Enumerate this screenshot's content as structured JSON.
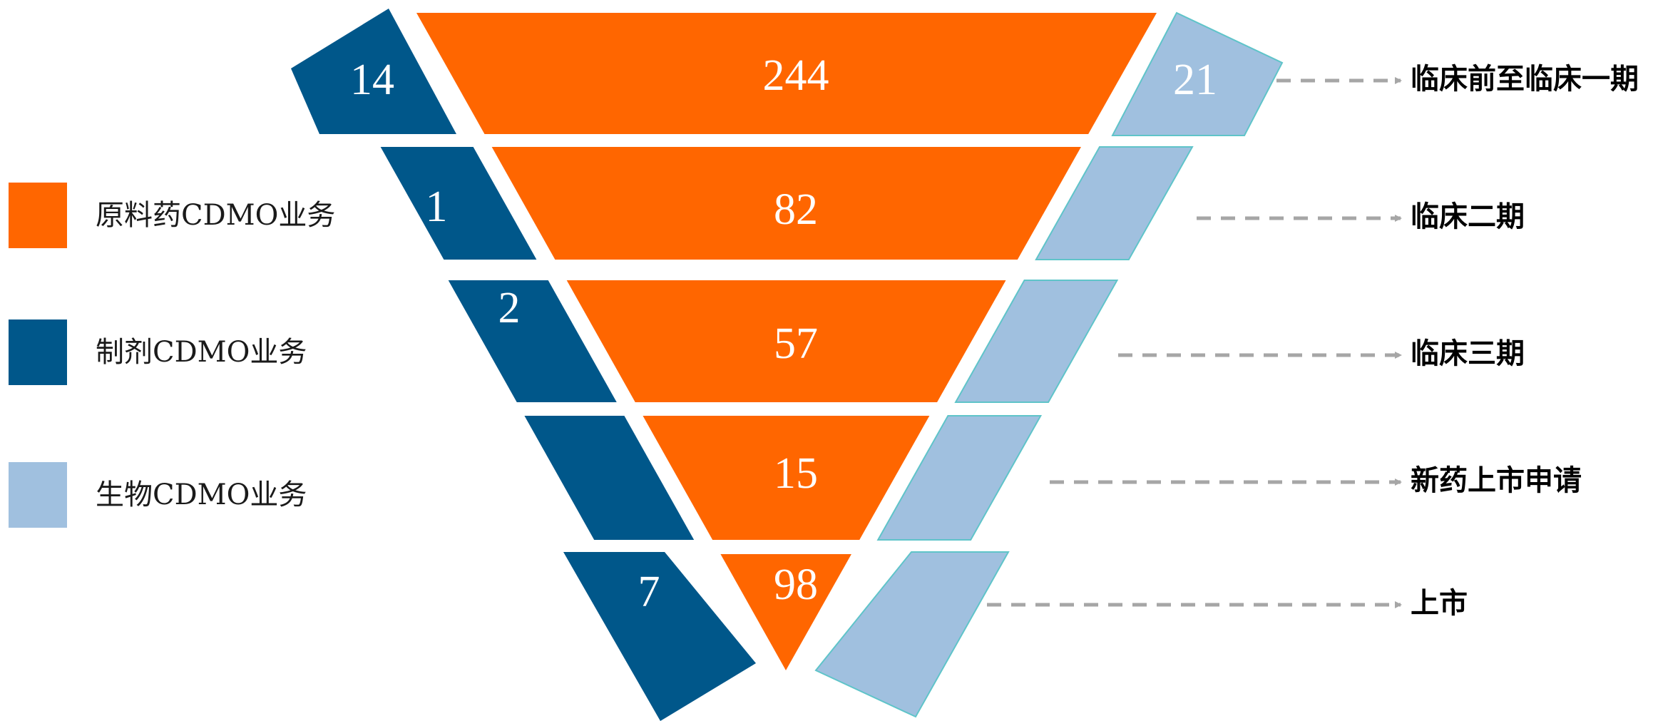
{
  "chart_data": {
    "type": "funnel",
    "stages": [
      "临床前至临床一期",
      "临床二期",
      "临床三期",
      "新药上市申请",
      "上市"
    ],
    "series": [
      {
        "name": "原料药CDMO业务",
        "color": "#FF6600",
        "values": [
          244,
          82,
          57,
          15,
          98
        ]
      },
      {
        "name": "制剂CDMO业务",
        "color": "#00578A",
        "values": [
          14,
          1,
          2,
          null,
          7
        ]
      },
      {
        "name": "生物CDMO业务",
        "color": "#A0C0DF",
        "values": [
          21,
          null,
          null,
          null,
          null
        ]
      }
    ],
    "legend_placement": "left",
    "connector_color": "#A6A6A6"
  }
}
